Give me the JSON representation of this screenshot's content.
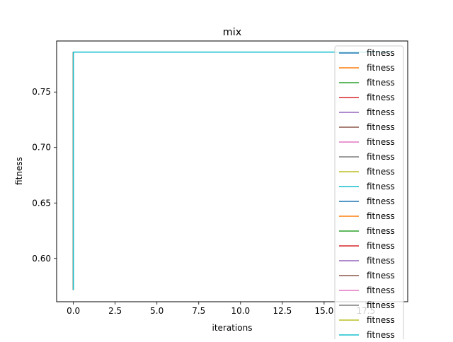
{
  "chart_data": {
    "type": "line",
    "title": "mix",
    "xlabel": "iterations",
    "ylabel": "fitness",
    "xlim": [
      -1,
      20
    ],
    "ylim": [
      0.561,
      0.796
    ],
    "xticks": [
      "0.0",
      "2.5",
      "5.0",
      "7.5",
      "10.0",
      "12.5",
      "15.0",
      "17.5"
    ],
    "xtick_values": [
      0,
      2.5,
      5,
      7.5,
      10,
      12.5,
      15,
      17.5
    ],
    "yticks": [
      "0.60",
      "0.65",
      "0.70",
      "0.75"
    ],
    "ytick_values": [
      0.6,
      0.65,
      0.7,
      0.75
    ],
    "grid": false,
    "legend_position": "top-right",
    "x": [
      0,
      0.001,
      1,
      2,
      3,
      4,
      5,
      6,
      7,
      8,
      9,
      10,
      11,
      12,
      13,
      14,
      15,
      16,
      17,
      18,
      19
    ],
    "series": [
      {
        "name": "fitness",
        "color": "#1f77b4",
        "values": [
          0.572,
          0.786,
          0.786,
          0.786,
          0.786,
          0.786,
          0.786,
          0.786,
          0.786,
          0.786,
          0.786,
          0.786,
          0.786,
          0.786,
          0.786,
          0.786,
          0.786,
          0.786,
          0.786,
          0.786,
          0.786
        ]
      },
      {
        "name": "fitness",
        "color": "#ff7f0e",
        "values": [
          0.572,
          0.786,
          0.786,
          0.786,
          0.786,
          0.786,
          0.786,
          0.786,
          0.786,
          0.786,
          0.786,
          0.786,
          0.786,
          0.786,
          0.786,
          0.786,
          0.786,
          0.786,
          0.786,
          0.786,
          0.786
        ]
      },
      {
        "name": "fitness",
        "color": "#2ca02c",
        "values": [
          0.572,
          0.786,
          0.786,
          0.786,
          0.786,
          0.786,
          0.786,
          0.786,
          0.786,
          0.786,
          0.786,
          0.786,
          0.786,
          0.786,
          0.786,
          0.786,
          0.786,
          0.786,
          0.786,
          0.786,
          0.786
        ]
      },
      {
        "name": "fitness",
        "color": "#d62728",
        "values": [
          0.572,
          0.786,
          0.786,
          0.786,
          0.786,
          0.786,
          0.786,
          0.786,
          0.786,
          0.786,
          0.786,
          0.786,
          0.786,
          0.786,
          0.786,
          0.786,
          0.786,
          0.786,
          0.786,
          0.786,
          0.786
        ]
      },
      {
        "name": "fitness",
        "color": "#9467bd",
        "values": [
          0.572,
          0.786,
          0.786,
          0.786,
          0.786,
          0.786,
          0.786,
          0.786,
          0.786,
          0.786,
          0.786,
          0.786,
          0.786,
          0.786,
          0.786,
          0.786,
          0.786,
          0.786,
          0.786,
          0.786,
          0.786
        ]
      },
      {
        "name": "fitness",
        "color": "#8c564b",
        "values": [
          0.572,
          0.786,
          0.786,
          0.786,
          0.786,
          0.786,
          0.786,
          0.786,
          0.786,
          0.786,
          0.786,
          0.786,
          0.786,
          0.786,
          0.786,
          0.786,
          0.786,
          0.786,
          0.786,
          0.786,
          0.786
        ]
      },
      {
        "name": "fitness",
        "color": "#e377c2",
        "values": [
          0.572,
          0.786,
          0.786,
          0.786,
          0.786,
          0.786,
          0.786,
          0.786,
          0.786,
          0.786,
          0.786,
          0.786,
          0.786,
          0.786,
          0.786,
          0.786,
          0.786,
          0.786,
          0.786,
          0.786,
          0.786
        ]
      },
      {
        "name": "fitness",
        "color": "#7f7f7f",
        "values": [
          0.572,
          0.786,
          0.786,
          0.786,
          0.786,
          0.786,
          0.786,
          0.786,
          0.786,
          0.786,
          0.786,
          0.786,
          0.786,
          0.786,
          0.786,
          0.786,
          0.786,
          0.786,
          0.786,
          0.786,
          0.786
        ]
      },
      {
        "name": "fitness",
        "color": "#bcbd22",
        "values": [
          0.572,
          0.786,
          0.786,
          0.786,
          0.786,
          0.786,
          0.786,
          0.786,
          0.786,
          0.786,
          0.786,
          0.786,
          0.786,
          0.786,
          0.786,
          0.786,
          0.786,
          0.786,
          0.786,
          0.786,
          0.786
        ]
      },
      {
        "name": "fitness",
        "color": "#17becf",
        "values": [
          0.572,
          0.786,
          0.786,
          0.786,
          0.786,
          0.786,
          0.786,
          0.786,
          0.786,
          0.786,
          0.786,
          0.786,
          0.786,
          0.786,
          0.786,
          0.786,
          0.786,
          0.786,
          0.786,
          0.786,
          0.786
        ]
      },
      {
        "name": "fitness",
        "color": "#1f77b4",
        "values": [
          0.572,
          0.786,
          0.786,
          0.786,
          0.786,
          0.786,
          0.786,
          0.786,
          0.786,
          0.786,
          0.786,
          0.786,
          0.786,
          0.786,
          0.786,
          0.786,
          0.786,
          0.786,
          0.786,
          0.786,
          0.786
        ]
      },
      {
        "name": "fitness",
        "color": "#ff7f0e",
        "values": [
          0.572,
          0.786,
          0.786,
          0.786,
          0.786,
          0.786,
          0.786,
          0.786,
          0.786,
          0.786,
          0.786,
          0.786,
          0.786,
          0.786,
          0.786,
          0.786,
          0.786,
          0.786,
          0.786,
          0.786,
          0.786
        ]
      },
      {
        "name": "fitness",
        "color": "#2ca02c",
        "values": [
          0.572,
          0.786,
          0.786,
          0.786,
          0.786,
          0.786,
          0.786,
          0.786,
          0.786,
          0.786,
          0.786,
          0.786,
          0.786,
          0.786,
          0.786,
          0.786,
          0.786,
          0.786,
          0.786,
          0.786,
          0.786
        ]
      },
      {
        "name": "fitness",
        "color": "#d62728",
        "values": [
          0.572,
          0.786,
          0.786,
          0.786,
          0.786,
          0.786,
          0.786,
          0.786,
          0.786,
          0.786,
          0.786,
          0.786,
          0.786,
          0.786,
          0.786,
          0.786,
          0.786,
          0.786,
          0.786,
          0.786,
          0.786
        ]
      },
      {
        "name": "fitness",
        "color": "#9467bd",
        "values": [
          0.572,
          0.786,
          0.786,
          0.786,
          0.786,
          0.786,
          0.786,
          0.786,
          0.786,
          0.786,
          0.786,
          0.786,
          0.786,
          0.786,
          0.786,
          0.786,
          0.786,
          0.786,
          0.786,
          0.786,
          0.786
        ]
      },
      {
        "name": "fitness",
        "color": "#8c564b",
        "values": [
          0.572,
          0.786,
          0.786,
          0.786,
          0.786,
          0.786,
          0.786,
          0.786,
          0.786,
          0.786,
          0.786,
          0.786,
          0.786,
          0.786,
          0.786,
          0.786,
          0.786,
          0.786,
          0.786,
          0.786,
          0.786
        ]
      },
      {
        "name": "fitness",
        "color": "#e377c2",
        "values": [
          0.572,
          0.786,
          0.786,
          0.786,
          0.786,
          0.786,
          0.786,
          0.786,
          0.786,
          0.786,
          0.786,
          0.786,
          0.786,
          0.786,
          0.786,
          0.786,
          0.786,
          0.786,
          0.786,
          0.786,
          0.786
        ]
      },
      {
        "name": "fitness",
        "color": "#7f7f7f",
        "values": [
          0.572,
          0.786,
          0.786,
          0.786,
          0.786,
          0.786,
          0.786,
          0.786,
          0.786,
          0.786,
          0.786,
          0.786,
          0.786,
          0.786,
          0.786,
          0.786,
          0.786,
          0.786,
          0.786,
          0.786,
          0.786
        ]
      },
      {
        "name": "fitness",
        "color": "#bcbd22",
        "values": [
          0.572,
          0.786,
          0.786,
          0.786,
          0.786,
          0.786,
          0.786,
          0.786,
          0.786,
          0.786,
          0.786,
          0.786,
          0.786,
          0.786,
          0.786,
          0.786,
          0.786,
          0.786,
          0.786,
          0.786,
          0.786
        ]
      },
      {
        "name": "fitness",
        "color": "#17becf",
        "values": [
          0.572,
          0.786,
          0.786,
          0.786,
          0.786,
          0.786,
          0.786,
          0.786,
          0.786,
          0.786,
          0.786,
          0.786,
          0.786,
          0.786,
          0.786,
          0.786,
          0.786,
          0.786,
          0.786,
          0.786,
          0.786
        ]
      }
    ]
  }
}
